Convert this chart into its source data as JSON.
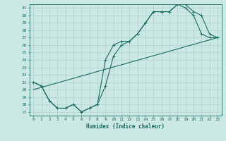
{
  "title": "",
  "xlabel": "Humidex (Indice chaleur)",
  "bg_color": "#cce8e5",
  "grid_color": "#b0d5d0",
  "line_color": "#1a6b60",
  "xlim": [
    -0.5,
    23.5
  ],
  "ylim": [
    16.5,
    31.5
  ],
  "xticks": [
    0,
    1,
    2,
    3,
    4,
    5,
    6,
    7,
    8,
    9,
    10,
    11,
    12,
    13,
    14,
    15,
    16,
    17,
    18,
    19,
    20,
    21,
    22,
    23
  ],
  "yticks": [
    17,
    18,
    19,
    20,
    21,
    22,
    23,
    24,
    25,
    26,
    27,
    28,
    29,
    30,
    31
  ],
  "line1_x": [
    0,
    1,
    2,
    3,
    4,
    5,
    6,
    7,
    8,
    9,
    10,
    11,
    12,
    13,
    14,
    15,
    16,
    17,
    18,
    19,
    20,
    21,
    22,
    23
  ],
  "line1_y": [
    21.0,
    20.5,
    18.5,
    17.5,
    17.5,
    18.0,
    17.0,
    17.5,
    18.0,
    20.5,
    24.5,
    26.0,
    26.5,
    27.5,
    29.0,
    30.5,
    30.5,
    30.5,
    31.5,
    31.5,
    30.5,
    30.0,
    27.5,
    27.0
  ],
  "line2_x": [
    0,
    1,
    2,
    3,
    4,
    5,
    6,
    7,
    8,
    9,
    10,
    11,
    12,
    13,
    14,
    15,
    16,
    17,
    18,
    19,
    20,
    21,
    22,
    23
  ],
  "line2_y": [
    21.0,
    20.5,
    18.5,
    17.5,
    17.5,
    18.0,
    17.0,
    17.5,
    18.0,
    24.0,
    26.0,
    26.5,
    26.5,
    27.5,
    29.0,
    30.5,
    30.5,
    30.5,
    31.5,
    31.0,
    30.0,
    27.5,
    27.0,
    27.0
  ],
  "line3_x": [
    0,
    23
  ],
  "line3_y": [
    20.0,
    27.0
  ]
}
